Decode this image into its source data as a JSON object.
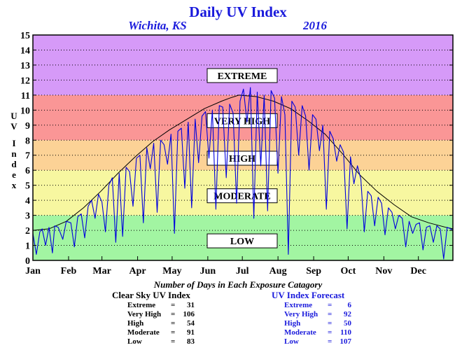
{
  "chart_data": {
    "type": "line",
    "title": "Daily UV Index",
    "location": "Wichita, KS",
    "year": "2016",
    "ylabel": "UV Index",
    "xlabel": "",
    "ylim": [
      0,
      15
    ],
    "yticks": [
      0,
      1,
      2,
      3,
      4,
      5,
      6,
      7,
      8,
      9,
      10,
      11,
      12,
      13,
      14,
      15
    ],
    "grid": "dotted",
    "months": [
      "Jan",
      "Feb",
      "Mar",
      "Apr",
      "May",
      "Jun",
      "Jul",
      "Aug",
      "Sep",
      "Oct",
      "Nov",
      "Dec"
    ],
    "bands": [
      {
        "label": "LOW",
        "min": 0,
        "max": 3,
        "color": "#a2f5a2",
        "label_y": 1.3
      },
      {
        "label": "MODERATE",
        "min": 3,
        "max": 6,
        "color": "#f7f7a0",
        "label_y": 4.3
      },
      {
        "label": "HIGH",
        "min": 6,
        "max": 8,
        "color": "#fcd296",
        "label_y": 6.8
      },
      {
        "label": "VERY HIGH",
        "min": 8,
        "max": 11,
        "color": "#fa9696",
        "label_y": 9.3
      },
      {
        "label": "EXTREME",
        "min": 11,
        "max": 15,
        "color": "#d69af8",
        "label_y": 12.3
      }
    ],
    "series": [
      {
        "name": "Clear Sky UV Index",
        "color": "#000000",
        "x": [
          1,
          15,
          30,
          45,
          60,
          75,
          90,
          105,
          120,
          135,
          150,
          165,
          172,
          180,
          195,
          210,
          225,
          240,
          255,
          270,
          285,
          300,
          315,
          330,
          345,
          360,
          366
        ],
        "y": [
          2.0,
          2.1,
          2.6,
          3.5,
          4.6,
          5.8,
          6.9,
          7.9,
          8.7,
          9.4,
          10.1,
          10.6,
          10.8,
          11.0,
          10.9,
          10.6,
          10.1,
          9.3,
          8.4,
          7.1,
          5.7,
          4.6,
          3.7,
          2.9,
          2.5,
          2.2,
          2.1
        ]
      },
      {
        "name": "UV Index Forecast",
        "color": "#0000dd",
        "x": [
          1,
          4,
          7,
          9,
          12,
          15,
          18,
          20,
          23,
          27,
          30,
          34,
          37,
          40,
          43,
          46,
          49,
          52,
          55,
          58,
          61,
          64,
          67,
          70,
          73,
          76,
          79,
          82,
          85,
          88,
          91,
          94,
          97,
          100,
          103,
          106,
          109,
          112,
          115,
          118,
          121,
          124,
          127,
          130,
          133,
          136,
          139,
          142,
          145,
          148,
          151,
          154,
          157,
          160,
          163,
          166,
          169,
          172,
          175,
          178,
          181,
          184,
          187,
          190,
          193,
          196,
          199,
          202,
          205,
          208,
          211,
          214,
          217,
          220,
          223,
          226,
          229,
          232,
          235,
          238,
          241,
          244,
          247,
          250,
          253,
          256,
          259,
          262,
          265,
          268,
          271,
          274,
          277,
          280,
          283,
          286,
          289,
          292,
          295,
          298,
          301,
          304,
          307,
          310,
          313,
          316,
          319,
          322,
          325,
          328,
          331,
          334,
          337,
          340,
          343,
          346,
          349,
          352,
          355,
          358,
          361,
          364,
          366
        ],
        "y": [
          1.8,
          0.4,
          1.9,
          2.1,
          1.0,
          2.2,
          0.5,
          2.3,
          2.2,
          1.4,
          2.6,
          2.5,
          0.9,
          2.9,
          3.1,
          1.5,
          3.6,
          4.0,
          2.8,
          4.4,
          3.9,
          1.9,
          5.0,
          5.5,
          1.2,
          5.8,
          1.6,
          6.2,
          5.9,
          3.6,
          6.8,
          7.0,
          2.5,
          7.5,
          6.1,
          7.8,
          3.2,
          8.0,
          7.7,
          6.4,
          8.4,
          1.8,
          8.6,
          8.8,
          4.8,
          9.2,
          3.5,
          9.4,
          6.5,
          9.6,
          9.9,
          6.8,
          10.0,
          3.4,
          10.3,
          10.2,
          5.5,
          10.4,
          9.8,
          3.8,
          10.6,
          11.4,
          9.2,
          11.5,
          2.8,
          11.2,
          6.3,
          11.0,
          3.3,
          11.3,
          10.8,
          5.8,
          10.9,
          9.7,
          0.4,
          10.6,
          10.2,
          7.0,
          10.3,
          9.6,
          6.0,
          9.7,
          9.4,
          7.3,
          9.0,
          3.4,
          8.6,
          8.1,
          6.6,
          7.7,
          7.2,
          2.1,
          6.9,
          5.1,
          6.3,
          5.4,
          1.9,
          4.6,
          4.3,
          2.3,
          4.2,
          3.8,
          1.7,
          3.5,
          3.2,
          2.1,
          3.0,
          2.8,
          0.9,
          2.6,
          1.8,
          2.4,
          2.5,
          0.7,
          2.2,
          2.3,
          1.2,
          2.3,
          2.1,
          0.1,
          2.2,
          2.1,
          2.0
        ]
      }
    ],
    "counts_caption": "Number of Days in Each Exposure Catagory",
    "counts": [
      {
        "name": "Clear Sky UV Index",
        "rows": [
          {
            "label": "Extreme",
            "value": "31"
          },
          {
            "label": "Very High",
            "value": "106"
          },
          {
            "label": "High",
            "value": "54"
          },
          {
            "label": "Moderate",
            "value": "91"
          },
          {
            "label": "Low",
            "value": "83"
          }
        ]
      },
      {
        "name": "UV Index Forecast",
        "rows": [
          {
            "label": "Extreme",
            "value": "6"
          },
          {
            "label": "Very High",
            "value": "92"
          },
          {
            "label": "High",
            "value": "50"
          },
          {
            "label": "Moderate",
            "value": "110"
          },
          {
            "label": "Low",
            "value": "107"
          }
        ]
      }
    ]
  }
}
